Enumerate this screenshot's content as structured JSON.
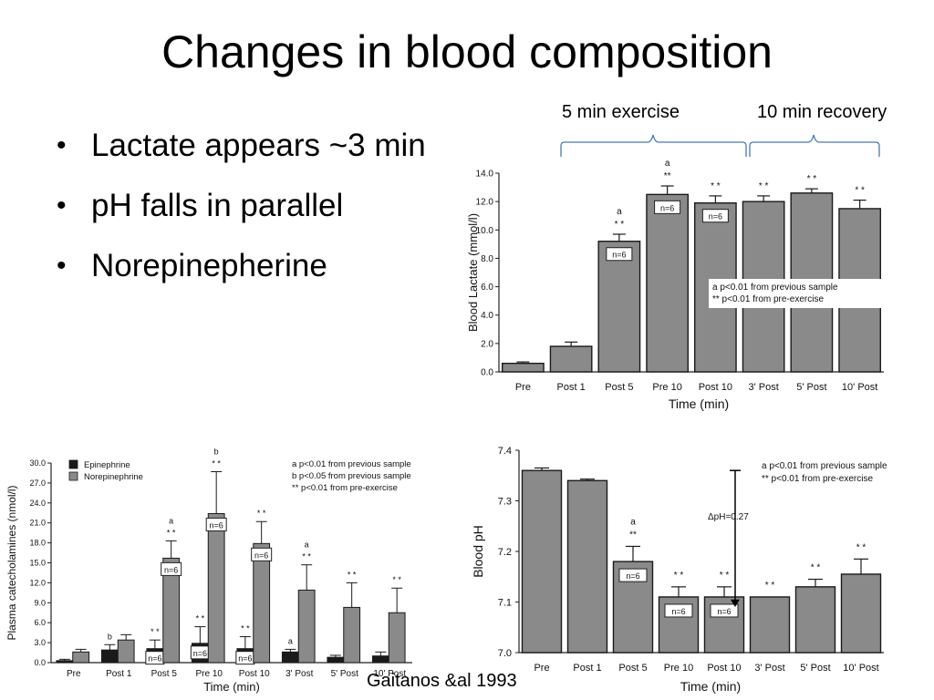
{
  "slide": {
    "title": "Changes in blood composition",
    "bullets": [
      "Lactate appears ~3 min",
      "pH falls in parallel",
      "Norepinepherine"
    ],
    "phase_labels": [
      "5 min exercise",
      "10 min recovery"
    ],
    "citation": "Gaitanos &al 1993"
  },
  "colors": {
    "bar_fill": "#8a8a8a",
    "bar_stroke": "#1a1a1a",
    "epinephrine_fill": "#1a1a1a",
    "norepinephrine_fill": "#8a8a8a",
    "bracket": "#4a7ab5",
    "axis": "#222222"
  },
  "chart_data": [
    {
      "type": "bar",
      "categories": [
        "Pre",
        "Post 1",
        "Post 5",
        "Pre 10",
        "Post 10",
        "3' Post",
        "5' Post",
        "10' Post"
      ],
      "values": [
        0.6,
        1.8,
        9.2,
        12.5,
        11.9,
        12.0,
        12.6,
        11.5
      ],
      "errors": [
        0.1,
        0.3,
        0.5,
        0.6,
        0.5,
        0.4,
        0.3,
        0.6
      ],
      "marks": [
        "",
        "",
        "a\n* *",
        "a\n**",
        "* *",
        "* *",
        "* *",
        "* *"
      ],
      "inbar_labels": [
        "",
        "",
        "n=6",
        "n=6",
        "n=6",
        "",
        "",
        ""
      ],
      "xlabel": "Time (min)",
      "ylabel": "Blood Lactate (mmol/l)",
      "ylim": [
        0,
        14
      ],
      "yticks": [
        "0.0",
        "2.0",
        "4.0",
        "6.0",
        "8.0",
        "10.0",
        "12.0",
        "14.0"
      ],
      "legend": [
        "a   p<0.01 from previous  sample",
        "**  p<0.01 from pre-exercise"
      ],
      "legend_position": "center-right"
    },
    {
      "type": "bar",
      "categories": [
        "Pre",
        "Post 1",
        "Post 5",
        "Pre 10",
        "Post 10",
        "3' Post",
        "5' Post",
        "10' Post"
      ],
      "series": [
        {
          "name": "Epinephrine",
          "values": [
            0.3,
            1.9,
            2.1,
            2.9,
            2.1,
            1.6,
            0.8,
            1.0
          ],
          "errors": [
            0.2,
            0.8,
            1.3,
            2.5,
            1.8,
            0.4,
            0.3,
            0.6
          ],
          "marks": [
            "",
            "b",
            "* *",
            "* *",
            "* *",
            "a",
            "",
            ""
          ]
        },
        {
          "name": "Norepinephrine",
          "values": [
            1.6,
            3.4,
            15.7,
            22.4,
            17.9,
            10.9,
            8.3,
            7.5
          ],
          "errors": [
            0.4,
            0.8,
            2.6,
            6.3,
            3.3,
            3.8,
            3.7,
            3.7
          ],
          "marks": [
            "",
            "",
            "a\n* *",
            "b\n* *",
            "* *",
            "a\n* *",
            "* *",
            "* *"
          ]
        }
      ],
      "inbar_labels": [
        "",
        "",
        "n=6",
        "n=6",
        "n=6",
        "",
        "",
        ""
      ],
      "xlabel": "Time (min)",
      "ylabel": "Plasma catecholamines (nmol/l)",
      "ylim": [
        0,
        30
      ],
      "yticks": [
        "0.0",
        "3.0",
        "6.0",
        "9.0",
        "12.0",
        "15.0",
        "18.0",
        "21.0",
        "24.0",
        "27.0",
        "30.0"
      ],
      "legend_notes": [
        "a   p<0.01 from previous sample",
        "b   p<0.05 from previous sample",
        "**  p<0.01 from pre-exercise"
      ],
      "legend_position": "top"
    },
    {
      "type": "bar",
      "categories": [
        "Pre",
        "Post 1",
        "Post 5",
        "Pre 10",
        "Post 10",
        "3' Post",
        "5' Post",
        "10' Post"
      ],
      "values": [
        7.36,
        7.34,
        7.18,
        7.11,
        7.11,
        7.11,
        7.13,
        7.155
      ],
      "errors": [
        0.005,
        0.003,
        0.03,
        0.02,
        0.02,
        0.0,
        0.015,
        0.03
      ],
      "marks": [
        "",
        "",
        "a\n**",
        "* *",
        "* *",
        "* *",
        "* *",
        "* *"
      ],
      "inbar_labels": [
        "",
        "",
        "n=6",
        "n=6",
        "n=6",
        "",
        "",
        ""
      ],
      "annotation": "ΔpH=0.27",
      "xlabel": "Time (min)",
      "ylabel": "Blood pH",
      "ylim": [
        7.0,
        7.4
      ],
      "yticks": [
        "7.0",
        "7.1",
        "7.2",
        "7.3",
        "7.4"
      ],
      "legend": [
        "a   p<0.01 from previous sample",
        "**  p<0.01 from pre-exercise"
      ],
      "legend_position": "top-right"
    }
  ]
}
